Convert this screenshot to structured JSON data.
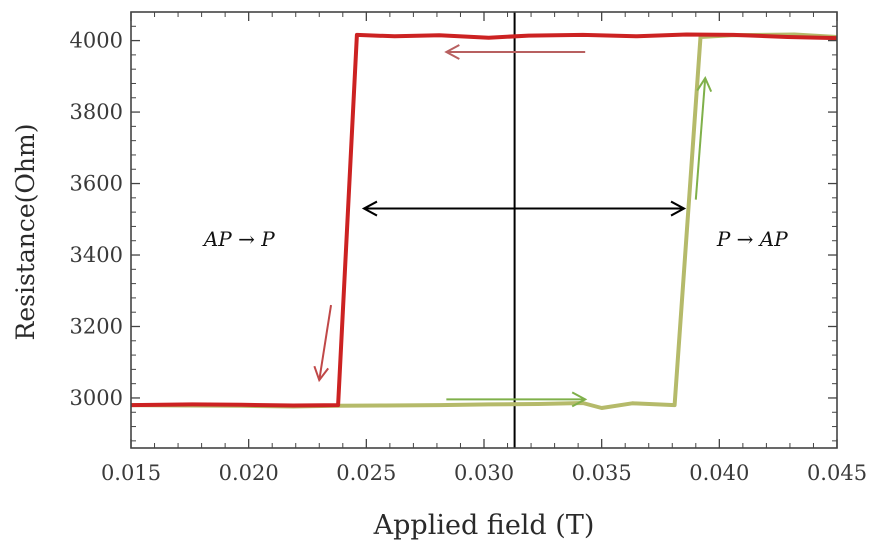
{
  "chart_data": {
    "type": "line",
    "title": "",
    "xlabel": "Applied field (T)",
    "ylabel": "Resistance(Ohm)",
    "xlim": [
      0.015,
      0.045
    ],
    "ylim": [
      2860,
      4080
    ],
    "xticks": [
      "0.015",
      "0.020",
      "0.025",
      "0.030",
      "0.035",
      "0.040",
      "0.045"
    ],
    "yticks": [
      "3000",
      "3200",
      "3400",
      "3600",
      "3800",
      "4000"
    ],
    "grid": false,
    "legend": "none",
    "series": [
      {
        "color": "#b5ba6a",
        "x": [
          0.015,
          0.0174,
          0.0197,
          0.0219,
          0.0237,
          0.0258,
          0.0281,
          0.0302,
          0.0323,
          0.0342,
          0.035,
          0.0363,
          0.0381,
          0.0392,
          0.0405,
          0.0432,
          0.045
        ],
        "y": [
          2980,
          2979,
          2978,
          2976,
          2978,
          2979,
          2980,
          2982,
          2983,
          2986,
          2972,
          2985,
          2980,
          4010,
          4015,
          4017,
          4010
        ]
      },
      {
        "color": "#cc2222",
        "x": [
          0.015,
          0.0176,
          0.0197,
          0.0219,
          0.0238,
          0.0246,
          0.0262,
          0.0281,
          0.0302,
          0.0319,
          0.0342,
          0.0365,
          0.0386,
          0.0406,
          0.0429,
          0.045
        ],
        "y": [
          2980,
          2982,
          2981,
          2979,
          2980,
          4016,
          4012,
          4015,
          4008,
          4014,
          4016,
          4012,
          4017,
          4016,
          4010,
          4007
        ]
      }
    ],
    "vline": {
      "x": 0.0313,
      "color": "#000000"
    },
    "annotations": [
      {
        "text": "AP → P",
        "x": 0.0196,
        "y": 3425
      },
      {
        "text": "P → AP",
        "x": 0.0414,
        "y": 3425
      }
    ],
    "arrows": [
      {
        "color": "#b86060",
        "from": [
          0.0343,
          3968
        ],
        "to": [
          0.0284,
          3968
        ]
      },
      {
        "color": "#000000",
        "from": [
          0.0249,
          3530
        ],
        "to": [
          0.0385,
          3530
        ],
        "double": true
      },
      {
        "color": "#c04848",
        "from": [
          0.0235,
          3260
        ],
        "to": [
          0.023,
          3050
        ]
      },
      {
        "color": "#7fb04a",
        "from": [
          0.0284,
          2996
        ],
        "to": [
          0.0343,
          2996
        ]
      },
      {
        "color": "#7fb04a",
        "from": [
          0.039,
          3555
        ],
        "to": [
          0.0394,
          3895
        ]
      }
    ]
  }
}
